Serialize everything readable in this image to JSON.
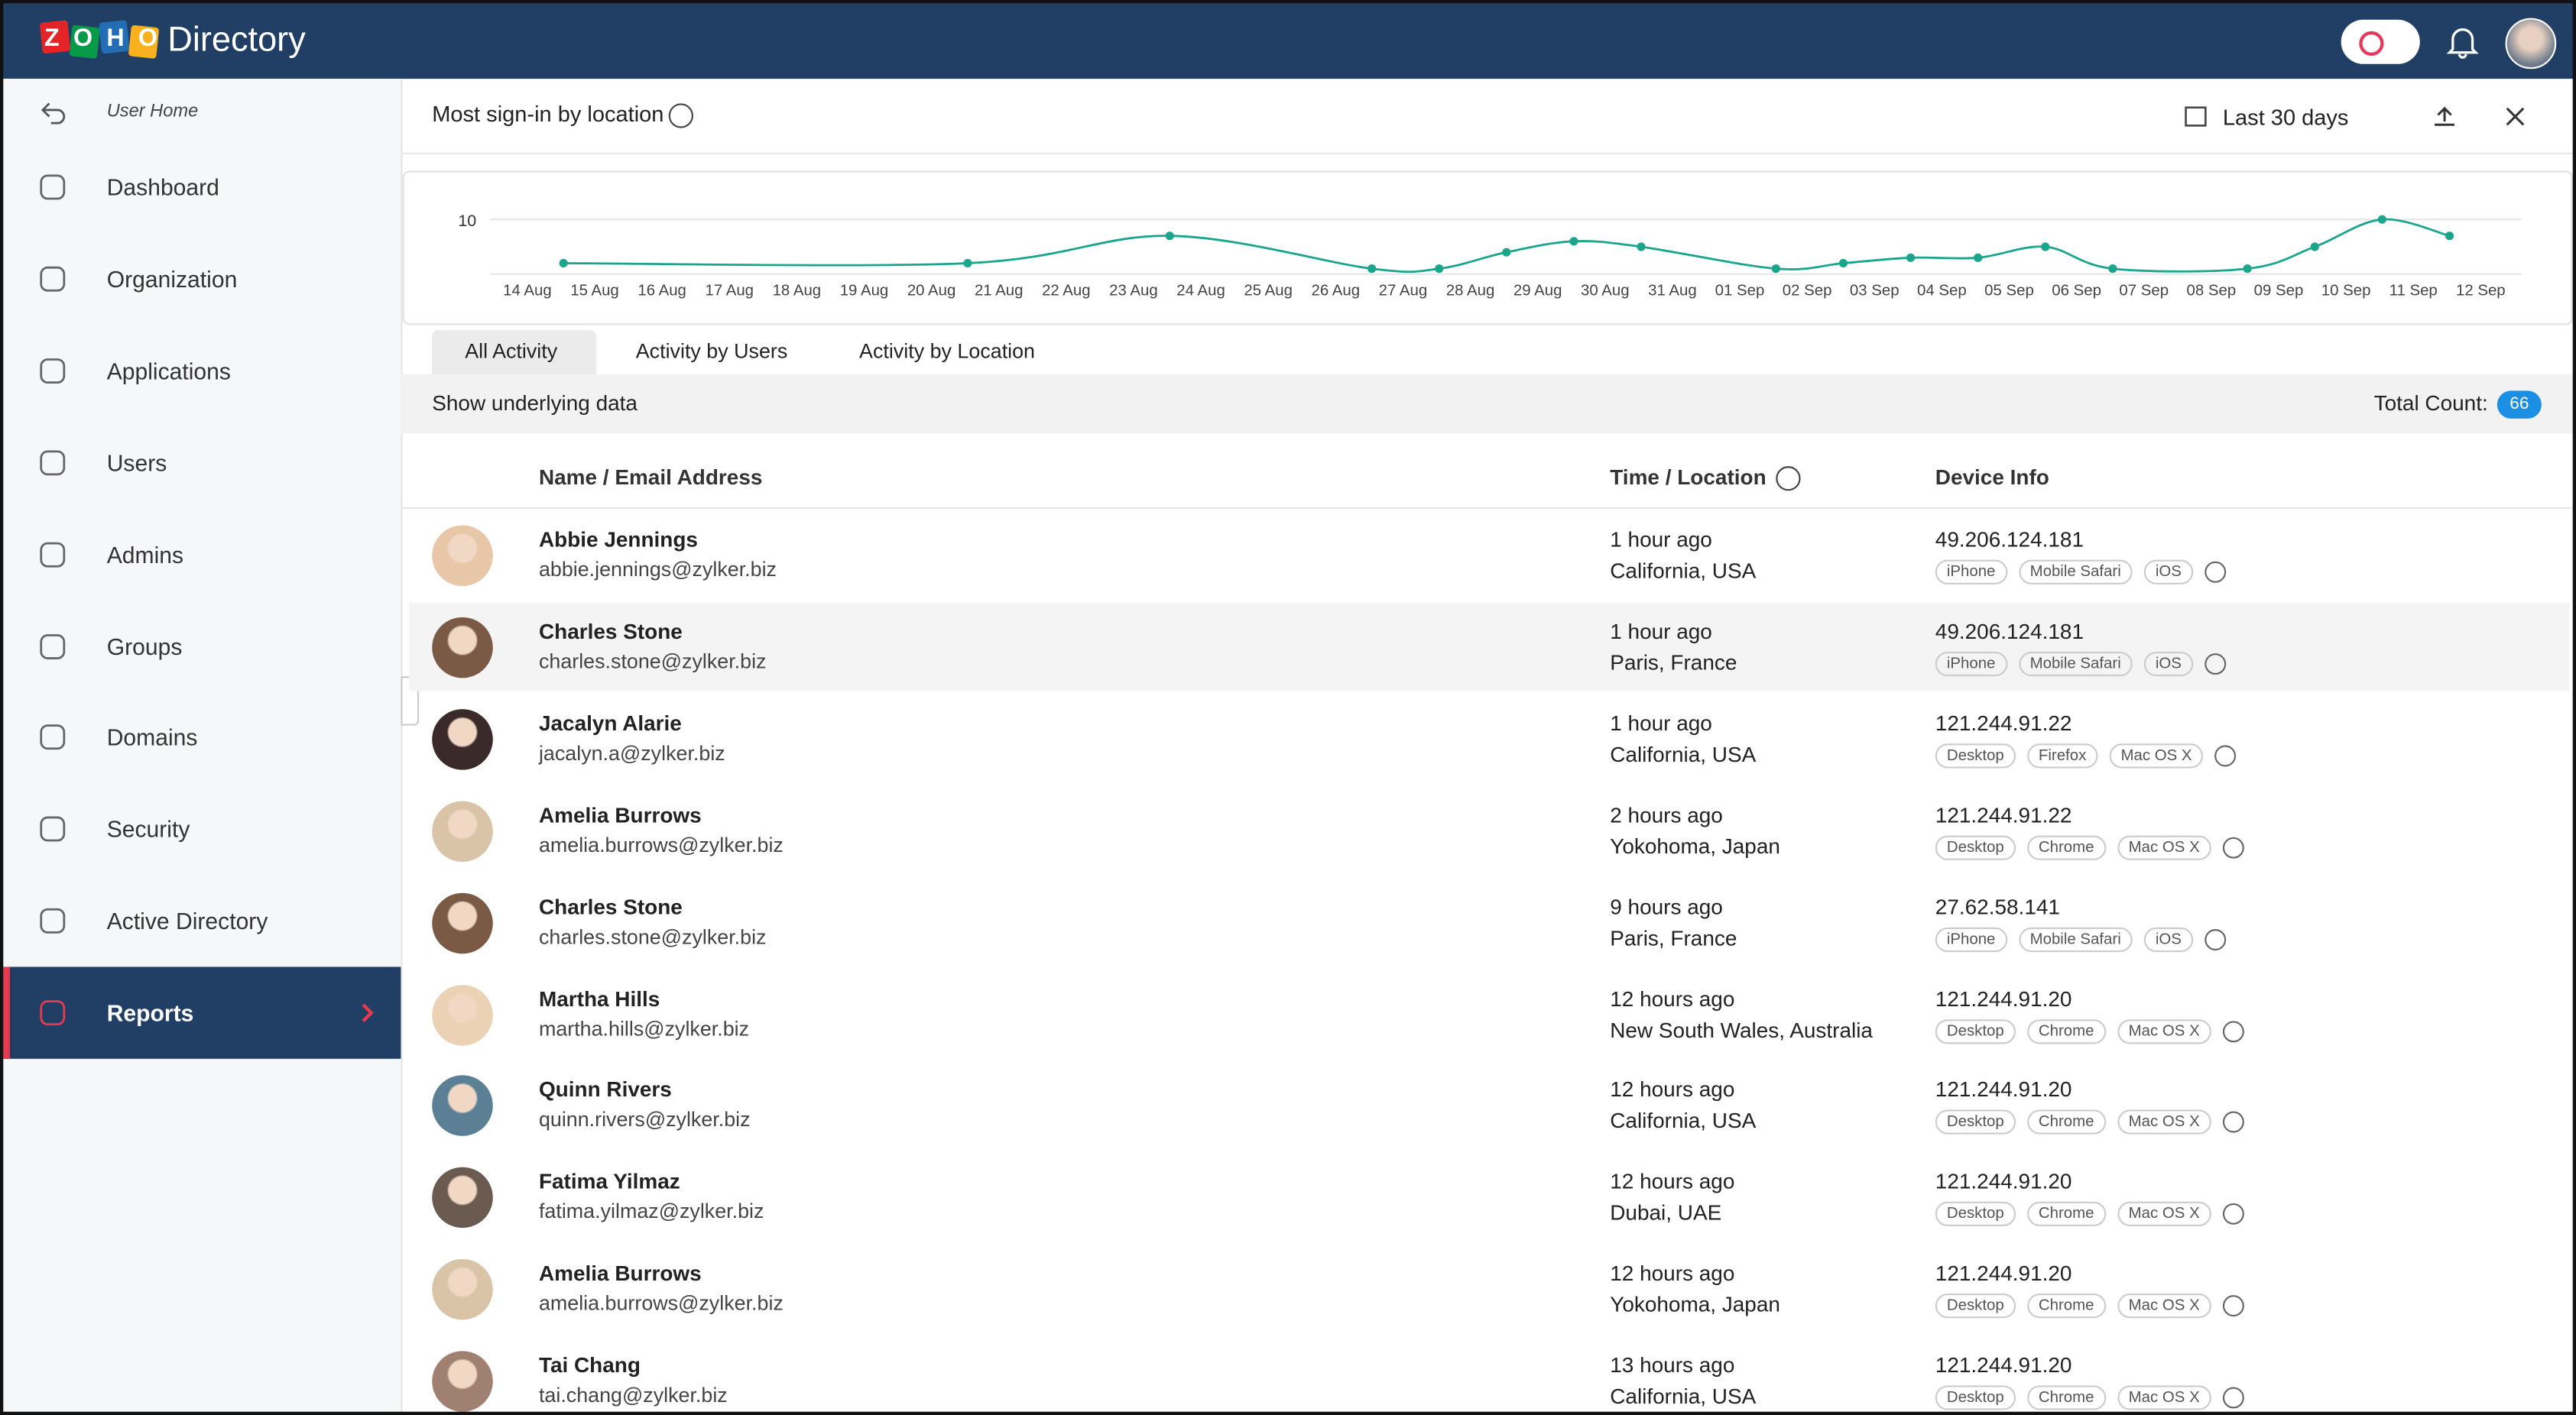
{
  "header": {
    "logo": "ZOHO",
    "product": "Directory"
  },
  "sidebar": {
    "back": "User Home",
    "items": [
      "Dashboard",
      "Organization",
      "Applications",
      "Users",
      "Admins",
      "Groups",
      "Domains",
      "Security",
      "Active Directory",
      "Reports"
    ],
    "active": 9
  },
  "panel": {
    "title": "Most sign-in by location",
    "range": "Last 30 days"
  },
  "chart_data": {
    "type": "line",
    "color": "#1aa58c",
    "categories": [
      "14 Aug",
      "15 Aug",
      "16 Aug",
      "17 Aug",
      "18 Aug",
      "19 Aug",
      "20 Aug",
      "21 Aug",
      "22 Aug",
      "23 Aug",
      "24 Aug",
      "25 Aug",
      "26 Aug",
      "27 Aug",
      "28 Aug",
      "29 Aug",
      "30 Aug",
      "31 Aug",
      "01 Sep",
      "02 Sep",
      "03 Sep",
      "04 Sep",
      "05 Sep",
      "06 Sep",
      "07 Sep",
      "08 Sep",
      "09 Sep",
      "10 Sep",
      "11 Sep",
      "12 Sep"
    ],
    "x": [
      "15 Aug",
      "21 Aug",
      "24 Aug",
      "27 Aug",
      "28 Aug",
      "29 Aug",
      "30 Aug",
      "31 Aug",
      "02 Sep",
      "03 Sep",
      "04 Sep",
      "05 Sep",
      "06 Sep",
      "07 Sep",
      "09 Sep",
      "10 Sep",
      "11 Sep",
      "12 Sep"
    ],
    "values": [
      2,
      2,
      7,
      1,
      1,
      4,
      6,
      5,
      1,
      2,
      3,
      3,
      5,
      1,
      1,
      5,
      10,
      7
    ],
    "ylim": [
      0,
      12
    ],
    "yticks": [
      10
    ],
    "grid": true
  },
  "tabs": {
    "items": [
      "All Activity",
      "Activity by Users",
      "Activity by Location"
    ],
    "selected": 0
  },
  "summary": {
    "label": "Show underlying data",
    "total_label": "Total Count:",
    "total": 66
  },
  "table": {
    "columns": [
      "Name / Email Address",
      "Time / Location",
      "Device Info"
    ],
    "highlighted": 1,
    "rows": [
      {
        "name": "Abbie Jennings",
        "email": "abbie.jennings@zylker.biz",
        "time": "1 hour ago",
        "location": "California, USA",
        "ip": "49.206.124.181",
        "tags": [
          "iPhone",
          "Mobile Safari",
          "iOS"
        ]
      },
      {
        "name": "Charles Stone",
        "email": "charles.stone@zylker.biz",
        "time": "1 hour ago",
        "location": "Paris, France",
        "ip": "49.206.124.181",
        "tags": [
          "iPhone",
          "Mobile Safari",
          "iOS"
        ]
      },
      {
        "name": "Jacalyn Alarie",
        "email": "jacalyn.a@zylker.biz",
        "time": "1 hour ago",
        "location": "California, USA",
        "ip": "121.244.91.22",
        "tags": [
          "Desktop",
          "Firefox",
          "Mac OS X"
        ]
      },
      {
        "name": "Amelia Burrows",
        "email": "amelia.burrows@zylker.biz",
        "time": "2 hours ago",
        "location": "Yokohoma, Japan",
        "ip": "121.244.91.22",
        "tags": [
          "Desktop",
          "Chrome",
          "Mac OS X"
        ]
      },
      {
        "name": "Charles Stone",
        "email": "charles.stone@zylker.biz",
        "time": "9 hours ago",
        "location": "Paris, France",
        "ip": "27.62.58.141",
        "tags": [
          "iPhone",
          "Mobile Safari",
          "iOS"
        ]
      },
      {
        "name": "Martha Hills",
        "email": "martha.hills@zylker.biz",
        "time": "12 hours ago",
        "location": "New South Wales, Australia",
        "ip": "121.244.91.20",
        "tags": [
          "Desktop",
          "Chrome",
          "Mac OS X"
        ]
      },
      {
        "name": "Quinn Rivers",
        "email": "quinn.rivers@zylker.biz",
        "time": "12 hours ago",
        "location": "California, USA",
        "ip": "121.244.91.20",
        "tags": [
          "Desktop",
          "Chrome",
          "Mac OS X"
        ]
      },
      {
        "name": "Fatima Yilmaz",
        "email": "fatima.yilmaz@zylker.biz",
        "time": "12 hours ago",
        "location": "Dubai, UAE",
        "ip": "121.244.91.20",
        "tags": [
          "Desktop",
          "Chrome",
          "Mac OS X"
        ]
      },
      {
        "name": "Amelia Burrows",
        "email": "amelia.burrows@zylker.biz",
        "time": "12 hours ago",
        "location": "Yokohoma, Japan",
        "ip": "121.244.91.20",
        "tags": [
          "Desktop",
          "Chrome",
          "Mac OS X"
        ]
      },
      {
        "name": "Tai Chang",
        "email": "tai.chang@zylker.biz",
        "time": "13 hours ago",
        "location": "California, USA",
        "ip": "121.244.91.20",
        "tags": [
          "Desktop",
          "Chrome",
          "Mac OS X"
        ]
      }
    ]
  }
}
